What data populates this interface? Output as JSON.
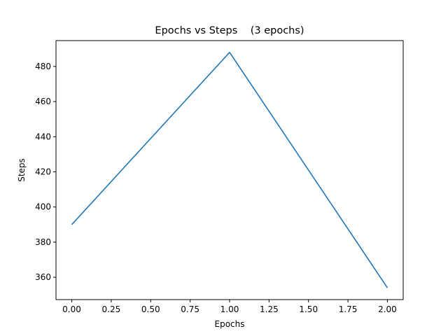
{
  "chart_data": {
    "type": "line",
    "title": "Epochs vs Steps    (3 epochs)",
    "xlabel": "Epochs",
    "ylabel": "Steps",
    "xlim": [
      -0.1,
      2.1
    ],
    "ylim": [
      347.3,
      494.7
    ],
    "xticks": [
      "0.00",
      "0.25",
      "0.50",
      "0.75",
      "1.00",
      "1.25",
      "1.50",
      "1.75",
      "2.00"
    ],
    "yticks": [
      "360",
      "380",
      "400",
      "420",
      "440",
      "460",
      "480"
    ],
    "grid": false,
    "series": [
      {
        "x": [
          0,
          1,
          2
        ],
        "y": [
          390,
          488,
          354
        ],
        "color": "#1f77b4"
      }
    ]
  }
}
